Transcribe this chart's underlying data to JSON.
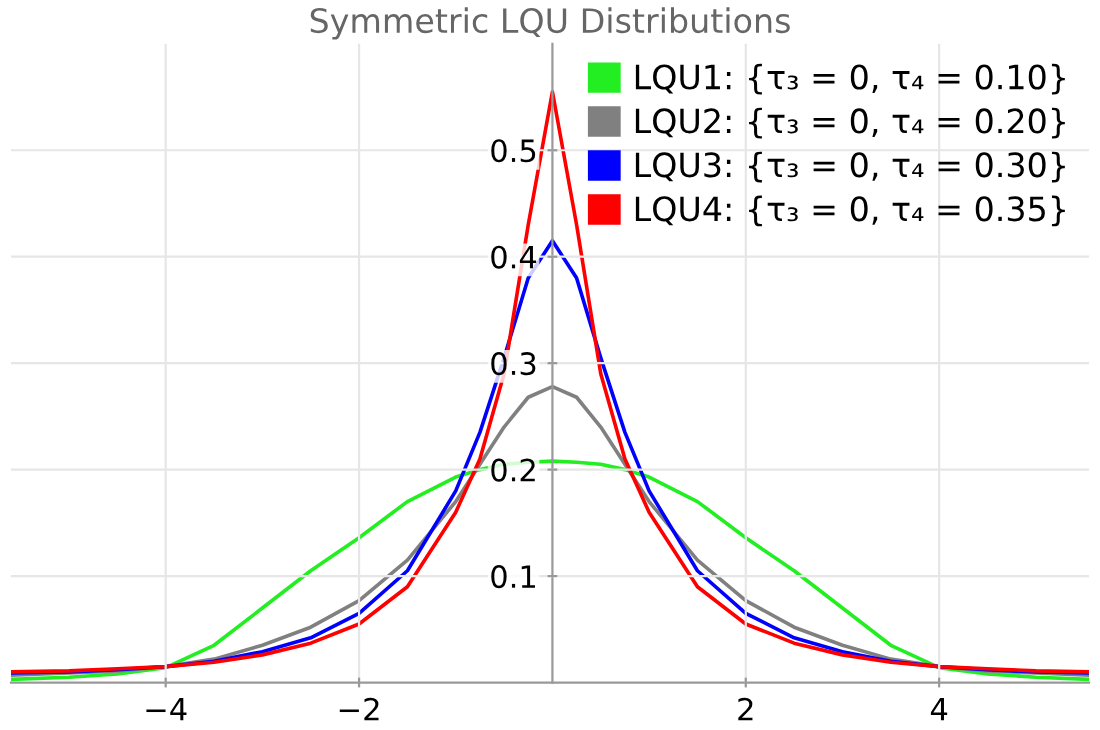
{
  "chart_data": {
    "type": "line",
    "title": "Symmetric LQU Distributions",
    "x": [
      -5.6,
      -5,
      -4.5,
      -4,
      -3.5,
      -3,
      -2.5,
      -2,
      -1.5,
      -1,
      -0.75,
      -0.5,
      -0.25,
      0,
      0.25,
      0.5,
      0.75,
      1,
      1.5,
      2,
      2.5,
      3,
      3.5,
      4,
      4.5,
      5,
      5.55
    ],
    "series": [
      {
        "name": "LQU1: {τ₃ = 0, τ₄ = 0.10}",
        "color": "#22ee22",
        "values": [
          0.003,
          0.005,
          0.008,
          0.014,
          0.035,
          0.07,
          0.105,
          0.136,
          0.17,
          0.193,
          0.2,
          0.205,
          0.207,
          0.208,
          0.207,
          0.205,
          0.2,
          0.193,
          0.17,
          0.136,
          0.105,
          0.07,
          0.035,
          0.014,
          0.008,
          0.005,
          0.003
        ]
      },
      {
        "name": "LQU2: {τ₃ = 0, τ₄ = 0.20}",
        "color": "#808080",
        "values": [
          0.007,
          0.009,
          0.011,
          0.015,
          0.022,
          0.035,
          0.052,
          0.077,
          0.115,
          0.17,
          0.205,
          0.24,
          0.268,
          0.278,
          0.268,
          0.24,
          0.205,
          0.17,
          0.115,
          0.077,
          0.052,
          0.035,
          0.022,
          0.015,
          0.011,
          0.009,
          0.007
        ]
      },
      {
        "name": "LQU3: {τ₃ = 0, τ₄ = 0.30}",
        "color": "#0000ff",
        "values": [
          0.009,
          0.01,
          0.012,
          0.015,
          0.02,
          0.029,
          0.042,
          0.065,
          0.105,
          0.18,
          0.235,
          0.305,
          0.38,
          0.415,
          0.38,
          0.305,
          0.235,
          0.18,
          0.105,
          0.065,
          0.042,
          0.029,
          0.02,
          0.015,
          0.012,
          0.01,
          0.009
        ]
      },
      {
        "name": "LQU4: {τ₃ = 0, τ₄ = 0.35}",
        "color": "#ff0000",
        "values": [
          0.01,
          0.011,
          0.013,
          0.015,
          0.019,
          0.026,
          0.037,
          0.055,
          0.09,
          0.16,
          0.21,
          0.29,
          0.43,
          0.555,
          0.43,
          0.29,
          0.21,
          0.16,
          0.09,
          0.055,
          0.037,
          0.026,
          0.019,
          0.015,
          0.013,
          0.011,
          0.01
        ]
      }
    ],
    "xlim": [
      -5.6,
      5.55
    ],
    "ylim": [
      0,
      0.6
    ],
    "xticks": [
      -4,
      -2,
      2,
      4
    ],
    "yticks": [
      0.1,
      0.2,
      0.3,
      0.4,
      0.5
    ],
    "grid": true,
    "legend": "top right",
    "marker": "none",
    "line_style": "solid"
  }
}
